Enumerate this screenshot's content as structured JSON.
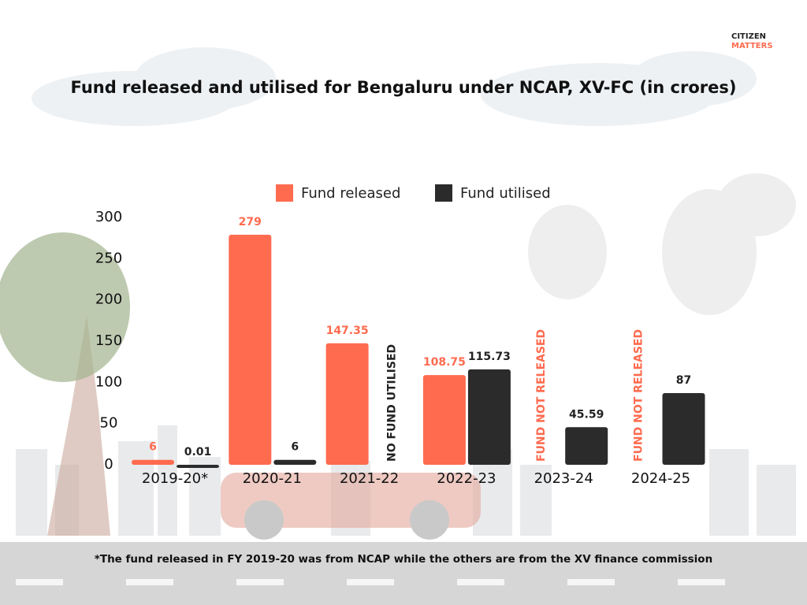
{
  "brand": {
    "line1": "CITIZEN",
    "line2": "MATTERS"
  },
  "chart_data": {
    "type": "bar",
    "title": "Fund released and utilised for Bengaluru under NCAP, XV-FC (in crores)",
    "footnote": "*The fund released in FY 2019-20 was from NCAP while the others are from the XV finance commission",
    "categories": [
      "2019-20*",
      "2020-21",
      "2021-22",
      "2022-23",
      "2023-24",
      "2024-25"
    ],
    "series": [
      {
        "name": "Fund released",
        "color": "#ff6b4f",
        "values": [
          6,
          279,
          147.35,
          108.75,
          null,
          null
        ],
        "value_labels": [
          "6",
          "279",
          "147.35",
          "108.75",
          "FUND NOT RELEASED",
          "FUND NOT RELEASED"
        ]
      },
      {
        "name": "Fund utilised",
        "color": "#2b2b2b",
        "values": [
          0.01,
          6,
          null,
          115.73,
          45.59,
          87
        ],
        "value_labels": [
          "0.01",
          "6",
          "NO FUND UTILISED",
          "115.73",
          "45.59",
          "87"
        ]
      }
    ],
    "ylim": [
      0,
      300
    ],
    "yticks": [
      0,
      50,
      100,
      150,
      200,
      250,
      300
    ],
    "grid": false,
    "legend": "top"
  }
}
